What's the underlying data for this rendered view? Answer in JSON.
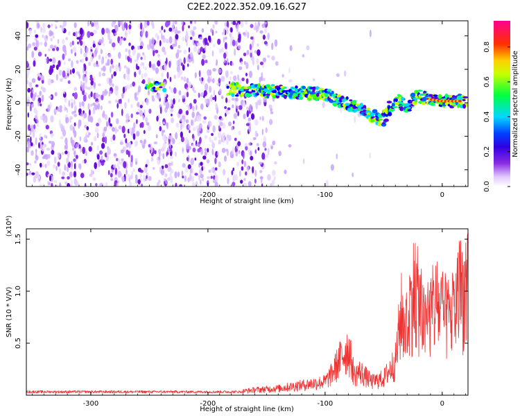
{
  "title": "C2E2.2022.352.09.16.G27",
  "chart_data": [
    {
      "type": "heatmap",
      "xlabel": "Height of straight line (km)",
      "ylabel": "Frequency (Hz)",
      "xlim": [
        -355,
        22
      ],
      "ylim": [
        -50,
        49
      ],
      "xticks": [
        -300,
        -200,
        -100,
        0
      ],
      "yticks": [
        -40,
        -20,
        0,
        20,
        40
      ],
      "colorbar": {
        "label": "Normalized spectral amplitude",
        "range": [
          0.0,
          0.95
        ],
        "ticks": [
          "0.0",
          "0.2",
          "0.4",
          "0.6",
          "0.8"
        ],
        "tick_values": [
          0.0,
          0.2,
          0.4,
          0.6,
          0.8
        ],
        "colors": [
          "#ffffff",
          "#d8b4ff",
          "#8a2be2",
          "#5a00d8",
          "#0000ff",
          "#00e0ff",
          "#00ff40",
          "#ffff00",
          "#ff8000",
          "#ff0000",
          "#ff0080"
        ]
      },
      "signal_track": {
        "x": [
          -250,
          -235,
          -180,
          -160,
          -140,
          -120,
          -100,
          -90,
          -80,
          -70,
          -60,
          -50,
          -40,
          -30,
          -20,
          -10,
          0,
          10,
          20
        ],
        "y": [
          9,
          10,
          8,
          7,
          7,
          6,
          5,
          2,
          -1,
          -3,
          -8,
          -10,
          2,
          -2,
          4,
          2,
          1,
          1,
          1
        ]
      }
    },
    {
      "type": "line",
      "xlabel": "Height of straight line (km)",
      "ylabel": "SNR (10 * V/V)",
      "yscale_note": "(x10⁴)",
      "xlim": [
        -355,
        22
      ],
      "ylim": [
        0,
        1.6
      ],
      "xticks": [
        -300,
        -200,
        -100,
        0
      ],
      "yticks": [
        0.5,
        1.0,
        1.5
      ],
      "color": "#ee3333",
      "envelope": {
        "x": [
          -355,
          -250,
          -180,
          -160,
          -140,
          -120,
          -100,
          -95,
          -85,
          -80,
          -75,
          -70,
          -60,
          -50,
          -40,
          -35,
          -30,
          -25,
          -20,
          -15,
          -10,
          -5,
          0,
          5,
          10,
          15,
          20,
          22
        ],
        "y": [
          0.03,
          0.03,
          0.04,
          0.08,
          0.1,
          0.15,
          0.2,
          0.3,
          0.6,
          0.7,
          0.3,
          0.35,
          0.2,
          0.25,
          0.5,
          1.2,
          1.0,
          1.55,
          1.4,
          1.0,
          1.2,
          1.35,
          1.2,
          1.15,
          1.2,
          1.55,
          1.5,
          1.58
        ]
      }
    }
  ]
}
